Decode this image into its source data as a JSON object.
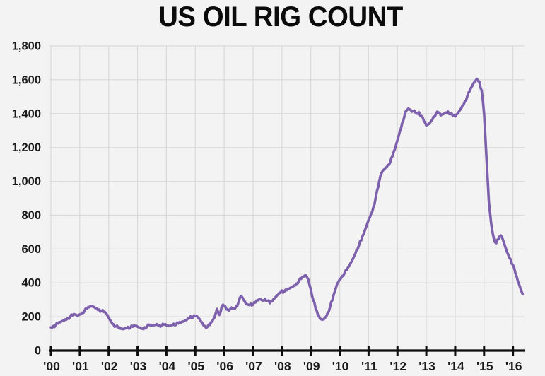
{
  "page": {
    "background_color": "#f4f3f3"
  },
  "chart_data": {
    "type": "line",
    "title": "US OIL RIG COUNT",
    "series_name": "US oil rig count",
    "xlabel": "",
    "ylabel": "",
    "x_unit": "year",
    "x_start": 2000.0,
    "x_step_years": 0.0833333,
    "xlim": [
      2000.0,
      2016.4
    ],
    "ylim": [
      0,
      1800
    ],
    "grid": true,
    "legend_position": "none",
    "line_color": "#7e61ad",
    "axis_color": "#0d0d0d",
    "grid_color": "#dbdadb",
    "label_color": "#1a1a1a",
    "y_ticks": [
      0,
      200,
      400,
      600,
      800,
      1000,
      1200,
      1400,
      1600,
      1800
    ],
    "y_tick_labels": [
      "0",
      "200",
      "400",
      "600",
      "800",
      "1,000",
      "1,200",
      "1,400",
      "1,600",
      "1,800"
    ],
    "x_ticks": [
      2000,
      2001,
      2002,
      2003,
      2004,
      2005,
      2006,
      2007,
      2008,
      2009,
      2010,
      2011,
      2012,
      2013,
      2014,
      2015,
      2016
    ],
    "x_tick_labels": [
      "'00",
      "'01",
      "'02",
      "'03",
      "'04",
      "'05",
      "'06",
      "'07",
      "'08",
      "'09",
      "'10",
      "'11",
      "'12",
      "'13",
      "'14",
      "'15",
      "'16"
    ],
    "values": [
      137,
      145,
      152,
      160,
      168,
      176,
      184,
      192,
      200,
      208,
      213,
      206,
      214,
      224,
      236,
      247,
      256,
      262,
      257,
      250,
      243,
      235,
      228,
      218,
      195,
      172,
      155,
      143,
      135,
      129,
      127,
      133,
      139,
      134,
      141,
      145,
      141,
      135,
      130,
      137,
      144,
      150,
      146,
      151,
      156,
      151,
      147,
      153,
      149,
      145,
      151,
      158,
      153,
      160,
      165,
      171,
      179,
      191,
      203,
      196,
      205,
      197,
      181,
      161,
      145,
      139,
      151,
      172,
      196,
      246,
      211,
      260,
      264,
      243,
      236,
      254,
      247,
      261,
      287,
      322,
      301,
      279,
      271,
      277,
      271,
      284,
      297,
      304,
      296,
      304,
      294,
      280,
      292,
      310,
      326,
      342,
      354,
      348,
      357,
      365,
      374,
      384,
      396,
      410,
      424,
      437,
      445,
      418,
      362,
      300,
      248,
      208,
      186,
      183,
      196,
      222,
      258,
      300,
      350,
      395,
      420,
      440,
      458,
      476,
      500,
      528,
      558,
      594,
      622,
      652,
      690,
      730,
      772,
      806,
      846,
      906,
      966,
      1036,
      1064,
      1080,
      1096,
      1113,
      1150,
      1192,
      1242,
      1294,
      1346,
      1392,
      1421,
      1426,
      1412,
      1418,
      1401,
      1408,
      1386,
      1356,
      1330,
      1338,
      1356,
      1382,
      1398,
      1408,
      1390,
      1397,
      1406,
      1412,
      1398,
      1388,
      1383,
      1400,
      1422,
      1447,
      1472,
      1502,
      1532,
      1562,
      1588,
      1606,
      1590,
      1536,
      1400,
      1140,
      880,
      745,
      665,
      633,
      658,
      680,
      648,
      605,
      568,
      540,
      505,
      458,
      412,
      372,
      334
    ]
  }
}
